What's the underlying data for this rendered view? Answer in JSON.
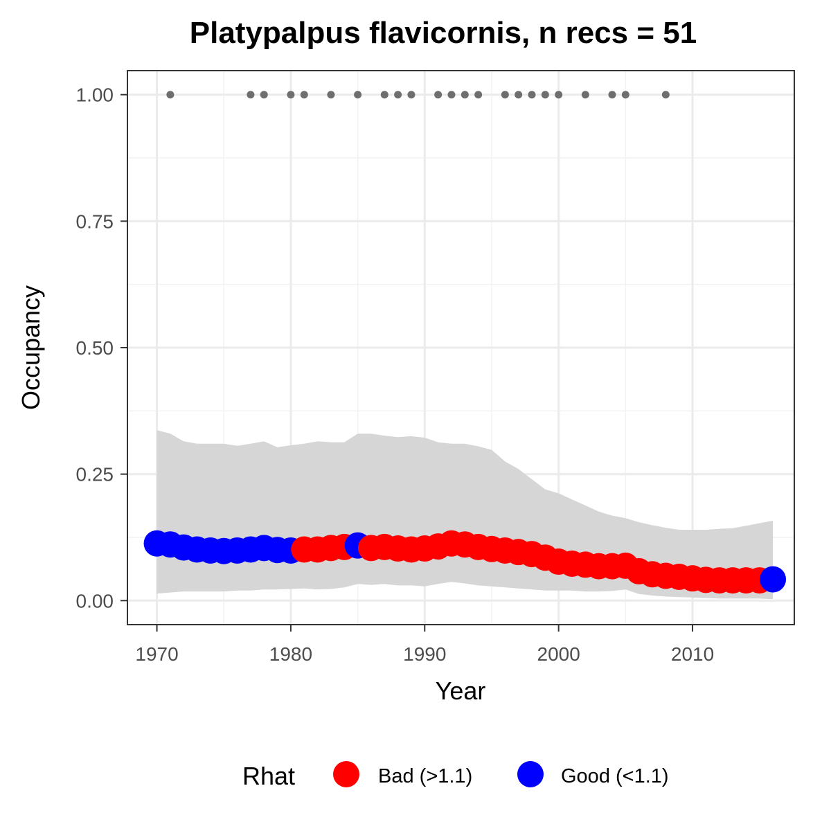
{
  "chart_data": {
    "type": "line",
    "title": "Platypalpus flavicornis, n recs = 51",
    "xlabel": "Year",
    "ylabel": "Occupancy",
    "xlim": [
      1967.8,
      2017.6
    ],
    "ylim": [
      -0.0475,
      1.0475
    ],
    "x_ticks": [
      1970,
      1980,
      1990,
      2000,
      2010
    ],
    "x_tick_labels": [
      "1970",
      "1980",
      "1990",
      "2000",
      "2010"
    ],
    "y_ticks": [
      0,
      0.25,
      0.5,
      0.75,
      1
    ],
    "y_tick_labels": [
      "0.00",
      "0.25",
      "0.50",
      "0.75",
      "1.00"
    ],
    "grid": true,
    "legend_position": "bottom",
    "legend": {
      "title": "Rhat",
      "entries": [
        {
          "label": "Bad (>1.1)",
          "color": "#ff0000"
        },
        {
          "label": "Good (<1.1)",
          "color": "#0000ff"
        }
      ]
    },
    "colors": {
      "bad": "#ff0000",
      "good": "#0000ff",
      "ribbon": "#d6d6d6",
      "record": "#6e6e6e"
    },
    "series": [
      {
        "x": [
          1970,
          1971,
          1972,
          1973,
          1974,
          1975,
          1976,
          1977,
          1978,
          1979,
          1980,
          1981,
          1982,
          1983,
          1984,
          1985,
          1986,
          1987,
          1988,
          1989,
          1990,
          1991,
          1992,
          1993,
          1994,
          1995,
          1996,
          1997,
          1998,
          1999,
          2000,
          2001,
          2002,
          2003,
          2004,
          2005,
          2006,
          2007,
          2008,
          2009,
          2010,
          2011,
          2012,
          2013,
          2014,
          2015,
          2016
        ],
        "y": [
          0.113,
          0.111,
          0.105,
          0.101,
          0.099,
          0.098,
          0.099,
          0.101,
          0.104,
          0.1,
          0.099,
          0.101,
          0.101,
          0.104,
          0.106,
          0.109,
          0.104,
          0.106,
          0.103,
          0.101,
          0.103,
          0.107,
          0.113,
          0.111,
          0.106,
          0.102,
          0.099,
          0.096,
          0.092,
          0.085,
          0.077,
          0.073,
          0.071,
          0.068,
          0.068,
          0.069,
          0.058,
          0.052,
          0.049,
          0.047,
          0.044,
          0.041,
          0.04,
          0.04,
          0.04,
          0.04,
          0.042
        ],
        "lower": [
          0.014,
          0.016,
          0.018,
          0.018,
          0.018,
          0.018,
          0.02,
          0.02,
          0.022,
          0.022,
          0.023,
          0.024,
          0.022,
          0.023,
          0.026,
          0.033,
          0.031,
          0.033,
          0.03,
          0.03,
          0.028,
          0.033,
          0.037,
          0.034,
          0.03,
          0.028,
          0.026,
          0.024,
          0.022,
          0.02,
          0.02,
          0.02,
          0.018,
          0.018,
          0.019,
          0.022,
          0.013,
          0.01,
          0.008,
          0.007,
          0.006,
          0.005,
          0.004,
          0.004,
          0.004,
          0.004,
          0.003
        ],
        "upper": [
          0.337,
          0.33,
          0.315,
          0.31,
          0.31,
          0.31,
          0.306,
          0.31,
          0.315,
          0.303,
          0.307,
          0.31,
          0.315,
          0.313,
          0.313,
          0.33,
          0.33,
          0.326,
          0.323,
          0.325,
          0.322,
          0.313,
          0.31,
          0.31,
          0.305,
          0.298,
          0.275,
          0.26,
          0.24,
          0.22,
          0.212,
          0.2,
          0.188,
          0.176,
          0.168,
          0.163,
          0.155,
          0.149,
          0.144,
          0.14,
          0.14,
          0.14,
          0.142,
          0.143,
          0.148,
          0.153,
          0.158
        ],
        "rhat_status": [
          "good",
          "good",
          "good",
          "good",
          "good",
          "good",
          "good",
          "good",
          "good",
          "good",
          "good",
          "bad",
          "bad",
          "bad",
          "bad",
          "good",
          "bad",
          "bad",
          "bad",
          "bad",
          "bad",
          "bad",
          "bad",
          "bad",
          "bad",
          "bad",
          "bad",
          "bad",
          "bad",
          "bad",
          "bad",
          "bad",
          "bad",
          "bad",
          "bad",
          "bad",
          "bad",
          "bad",
          "bad",
          "bad",
          "bad",
          "bad",
          "bad",
          "bad",
          "bad",
          "bad",
          "good"
        ]
      }
    ],
    "records": {
      "x": [
        1971,
        1977,
        1978,
        1980,
        1981,
        1983,
        1985,
        1987,
        1988,
        1989,
        1991,
        1992,
        1993,
        1994,
        1996,
        1997,
        1998,
        1999,
        2000,
        2002,
        2004,
        2005,
        2008
      ],
      "y": [
        1,
        1,
        1,
        1,
        1,
        1,
        1,
        1,
        1,
        1,
        1,
        1,
        1,
        1,
        1,
        1,
        1,
        1,
        1,
        1,
        1,
        1,
        1
      ]
    }
  }
}
